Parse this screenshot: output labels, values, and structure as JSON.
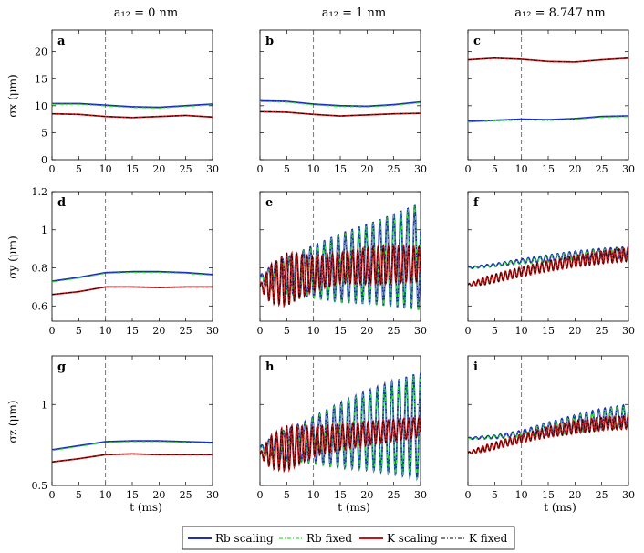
{
  "chart_data": {
    "type": "line",
    "column_titles": [
      "a₁₂ = 0 nm",
      "a₁₂ = 1 nm",
      "a₁₂ = 8.747 nm"
    ],
    "row_ylabels": [
      "σx (μm)",
      "σy (μm)",
      "σz (μm)"
    ],
    "xlabel": "t (ms)",
    "xlim": [
      0,
      30
    ],
    "xticks": [
      0,
      5,
      10,
      15,
      20,
      25,
      30
    ],
    "vline_x": 10,
    "rows": [
      {
        "ylim": [
          0,
          24
        ],
        "yticks": [
          0,
          5,
          10,
          15,
          20
        ]
      },
      {
        "ylim": [
          0.52,
          1.2
        ],
        "yticks": [
          0.6,
          0.8,
          1,
          1.2
        ]
      },
      {
        "ylim": [
          0.5,
          1.3
        ],
        "yticks": [
          0.5,
          1
        ]
      }
    ],
    "legend": [
      {
        "name": "Rb scaling",
        "color": "#1f2fb4",
        "style": "solid"
      },
      {
        "name": "Rb fixed",
        "color": "#2ee62e",
        "style": "dashdot"
      },
      {
        "name": "K scaling",
        "color": "#c81414",
        "style": "solid"
      },
      {
        "name": "K fixed",
        "color": "#000000",
        "style": "dashdot"
      }
    ],
    "panels": [
      {
        "label": "a",
        "row": 0,
        "col": 0,
        "rb": {
          "base": [
            [
              0,
              10.4
            ],
            [
              5,
              10.4
            ],
            [
              10,
              10.1
            ],
            [
              15,
              9.8
            ],
            [
              20,
              9.7
            ],
            [
              25,
              10.0
            ],
            [
              30,
              10.3
            ]
          ]
        },
        "k": {
          "base": [
            [
              0,
              8.5
            ],
            [
              5,
              8.4
            ],
            [
              10,
              8.0
            ],
            [
              15,
              7.8
            ],
            [
              20,
              8.0
            ],
            [
              25,
              8.2
            ],
            [
              30,
              7.9
            ]
          ]
        }
      },
      {
        "label": "b",
        "row": 0,
        "col": 1,
        "rb": {
          "base": [
            [
              0,
              10.9
            ],
            [
              5,
              10.8
            ],
            [
              10,
              10.3
            ],
            [
              15,
              10.0
            ],
            [
              20,
              9.9
            ],
            [
              25,
              10.2
            ],
            [
              30,
              10.7
            ]
          ]
        },
        "k": {
          "base": [
            [
              0,
              8.9
            ],
            [
              5,
              8.8
            ],
            [
              10,
              8.4
            ],
            [
              15,
              8.1
            ],
            [
              20,
              8.3
            ],
            [
              25,
              8.5
            ],
            [
              30,
              8.6
            ]
          ]
        }
      },
      {
        "label": "c",
        "row": 0,
        "col": 2,
        "rb": {
          "base": [
            [
              0,
              7.1
            ],
            [
              5,
              7.3
            ],
            [
              10,
              7.5
            ],
            [
              15,
              7.4
            ],
            [
              20,
              7.6
            ],
            [
              25,
              8.0
            ],
            [
              30,
              8.1
            ]
          ]
        },
        "k": {
          "base": [
            [
              0,
              18.5
            ],
            [
              5,
              18.8
            ],
            [
              10,
              18.6
            ],
            [
              15,
              18.2
            ],
            [
              20,
              18.1
            ],
            [
              25,
              18.5
            ],
            [
              30,
              18.8
            ]
          ]
        }
      },
      {
        "label": "d",
        "row": 1,
        "col": 0,
        "rb": {
          "base": [
            [
              0,
              0.73
            ],
            [
              5,
              0.75
            ],
            [
              10,
              0.775
            ],
            [
              15,
              0.78
            ],
            [
              20,
              0.78
            ],
            [
              25,
              0.775
            ],
            [
              30,
              0.765
            ]
          ]
        },
        "k": {
          "base": [
            [
              0,
              0.66
            ],
            [
              5,
              0.675
            ],
            [
              10,
              0.7
            ],
            [
              15,
              0.7
            ],
            [
              20,
              0.697
            ],
            [
              25,
              0.7
            ],
            [
              30,
              0.7
            ]
          ]
        }
      },
      {
        "label": "e",
        "row": 1,
        "col": 1,
        "rb": {
          "base": [
            [
              0,
              0.74
            ],
            [
              5,
              0.76
            ],
            [
              10,
              0.78
            ],
            [
              15,
              0.8
            ],
            [
              20,
              0.82
            ],
            [
              25,
              0.84
            ],
            [
              30,
              0.86
            ]
          ],
          "amp": [
            [
              0,
              0.02
            ],
            [
              3,
              0.08
            ],
            [
              8,
              0.12
            ],
            [
              15,
              0.18
            ],
            [
              22,
              0.22
            ],
            [
              30,
              0.28
            ]
          ],
          "period": 1.3
        },
        "k": {
          "base": [
            [
              0,
              0.7
            ],
            [
              5,
              0.74
            ],
            [
              10,
              0.77
            ],
            [
              15,
              0.8
            ],
            [
              20,
              0.81
            ],
            [
              25,
              0.82
            ],
            [
              30,
              0.82
            ]
          ],
          "amp": [
            [
              0,
              0.01
            ],
            [
              2,
              0.1
            ],
            [
              5,
              0.14
            ],
            [
              10,
              0.09
            ],
            [
              15,
              0.08
            ],
            [
              22,
              0.1
            ],
            [
              30,
              0.09
            ]
          ],
          "period": 0.95
        }
      },
      {
        "label": "f",
        "row": 1,
        "col": 2,
        "rb": {
          "base": [
            [
              0,
              0.8
            ],
            [
              5,
              0.815
            ],
            [
              10,
              0.835
            ],
            [
              15,
              0.85
            ],
            [
              20,
              0.865
            ],
            [
              25,
              0.875
            ],
            [
              30,
              0.88
            ]
          ],
          "amp": [
            [
              0,
              0.004
            ],
            [
              8,
              0.01
            ],
            [
              15,
              0.018
            ],
            [
              22,
              0.025
            ],
            [
              30,
              0.03
            ]
          ],
          "period": 1.1
        },
        "k": {
          "base": [
            [
              0,
              0.71
            ],
            [
              5,
              0.745
            ],
            [
              10,
              0.78
            ],
            [
              15,
              0.81
            ],
            [
              20,
              0.835
            ],
            [
              25,
              0.855
            ],
            [
              30,
              0.87
            ]
          ],
          "amp": [
            [
              0,
              0.005
            ],
            [
              3,
              0.02
            ],
            [
              10,
              0.025
            ],
            [
              20,
              0.03
            ],
            [
              30,
              0.035
            ]
          ],
          "period": 0.85
        }
      },
      {
        "label": "g",
        "row": 2,
        "col": 0,
        "rb": {
          "base": [
            [
              0,
              0.72
            ],
            [
              5,
              0.745
            ],
            [
              10,
              0.77
            ],
            [
              15,
              0.775
            ],
            [
              20,
              0.775
            ],
            [
              25,
              0.77
            ],
            [
              30,
              0.765
            ]
          ]
        },
        "k": {
          "base": [
            [
              0,
              0.645
            ],
            [
              5,
              0.665
            ],
            [
              10,
              0.69
            ],
            [
              15,
              0.695
            ],
            [
              20,
              0.69
            ],
            [
              25,
              0.69
            ],
            [
              30,
              0.69
            ]
          ]
        }
      },
      {
        "label": "h",
        "row": 2,
        "col": 1,
        "rb": {
          "base": [
            [
              0,
              0.72
            ],
            [
              5,
              0.75
            ],
            [
              10,
              0.78
            ],
            [
              15,
              0.81
            ],
            [
              20,
              0.84
            ],
            [
              25,
              0.86
            ],
            [
              30,
              0.87
            ]
          ],
          "amp": [
            [
              0,
              0.02
            ],
            [
              3,
              0.08
            ],
            [
              8,
              0.12
            ],
            [
              15,
              0.2
            ],
            [
              22,
              0.26
            ],
            [
              30,
              0.33
            ]
          ],
          "period": 1.35
        },
        "k": {
          "base": [
            [
              0,
              0.69
            ],
            [
              5,
              0.73
            ],
            [
              10,
              0.77
            ],
            [
              15,
              0.8
            ],
            [
              20,
              0.82
            ],
            [
              25,
              0.84
            ],
            [
              30,
              0.86
            ]
          ],
          "amp": [
            [
              0,
              0.01
            ],
            [
              2,
              0.1
            ],
            [
              5,
              0.14
            ],
            [
              10,
              0.09
            ],
            [
              15,
              0.08
            ],
            [
              22,
              0.07
            ],
            [
              30,
              0.06
            ]
          ],
          "period": 0.95
        }
      },
      {
        "label": "i",
        "row": 2,
        "col": 2,
        "rb": {
          "base": [
            [
              0,
              0.79
            ],
            [
              5,
              0.8
            ],
            [
              10,
              0.82
            ],
            [
              15,
              0.85
            ],
            [
              20,
              0.88
            ],
            [
              25,
              0.91
            ],
            [
              30,
              0.93
            ]
          ],
          "amp": [
            [
              0,
              0.005
            ],
            [
              5,
              0.01
            ],
            [
              10,
              0.02
            ],
            [
              15,
              0.04
            ],
            [
              22,
              0.06
            ],
            [
              30,
              0.07
            ]
          ],
          "period": 1.15
        },
        "k": {
          "base": [
            [
              0,
              0.7
            ],
            [
              5,
              0.745
            ],
            [
              10,
              0.79
            ],
            [
              15,
              0.83
            ],
            [
              20,
              0.86
            ],
            [
              25,
              0.88
            ],
            [
              30,
              0.89
            ]
          ],
          "amp": [
            [
              0,
              0.005
            ],
            [
              3,
              0.02
            ],
            [
              10,
              0.025
            ],
            [
              20,
              0.04
            ],
            [
              30,
              0.04
            ]
          ],
          "period": 0.85
        }
      }
    ]
  }
}
